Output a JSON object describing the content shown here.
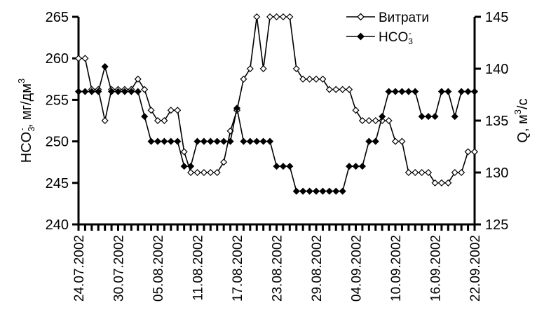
{
  "chart_data": {
    "type": "line",
    "x": [
      "24.07.2002",
      "25.07.2002",
      "26.07.2002",
      "27.07.2002",
      "28.07.2002",
      "29.07.2002",
      "30.07.2002",
      "31.07.2002",
      "01.08.2002",
      "02.08.2002",
      "03.08.2002",
      "04.08.2002",
      "05.08.2002",
      "06.08.2002",
      "07.08.2002",
      "08.08.2002",
      "09.08.2002",
      "10.08.2002",
      "11.08.2002",
      "12.08.2002",
      "13.08.2002",
      "14.08.2002",
      "15.08.2002",
      "16.08.2002",
      "17.08.2002",
      "18.08.2002",
      "19.08.2002",
      "20.08.2002",
      "21.08.2002",
      "22.08.2002",
      "23.08.2002",
      "24.08.2002",
      "25.08.2002",
      "26.08.2002",
      "27.08.2002",
      "28.08.2002",
      "29.08.2002",
      "30.08.2002",
      "31.08.2002",
      "01.09.2002",
      "02.09.2002",
      "03.09.2002",
      "04.09.2002",
      "05.09.2002",
      "06.09.2002",
      "07.09.2002",
      "08.09.2002",
      "09.09.2002",
      "10.09.2002",
      "11.09.2002",
      "12.09.2002",
      "13.09.2002",
      "14.09.2002",
      "15.09.2002",
      "16.09.2002",
      "17.09.2002",
      "18.09.2002",
      "19.09.2002",
      "20.09.2002",
      "21.09.2002",
      "22.09.2002"
    ],
    "x_tick_labels": [
      "24.07.2002",
      "30.07.2002",
      "05.08.2002",
      "11.08.2002",
      "17.08.2002",
      "23.08.2002",
      "29.08.2002",
      "04.09.2002",
      "10.09.2002",
      "16.09.2002",
      "22.09.2002"
    ],
    "series": [
      {
        "name": "Витрати",
        "axis": "right",
        "marker": "open-diamond",
        "values": [
          141,
          141,
          138,
          138,
          135,
          138,
          138,
          138,
          138,
          139,
          138,
          136,
          135,
          135,
          136,
          136,
          132,
          130,
          130,
          130,
          130,
          130,
          131,
          134,
          136,
          139,
          140,
          145,
          140,
          145,
          145,
          145,
          145,
          140,
          139,
          139,
          139,
          139,
          138,
          138,
          138,
          138,
          136,
          135,
          135,
          135,
          135,
          135,
          133,
          133,
          130,
          130,
          130,
          130,
          129,
          129,
          129,
          130,
          130,
          132,
          132
        ]
      },
      {
        "name": "HCO3-",
        "axis": "left",
        "marker": "filled-diamond",
        "values": [
          256,
          256,
          256,
          256,
          259,
          256,
          256,
          256,
          256,
          256,
          253,
          250,
          250,
          250,
          250,
          250,
          247,
          247,
          250,
          250,
          250,
          250,
          250,
          250,
          254,
          250,
          250,
          250,
          250,
          250,
          247,
          247,
          247,
          244,
          244,
          244,
          244,
          244,
          244,
          244,
          244,
          247,
          247,
          247,
          250,
          250,
          253,
          256,
          256,
          256,
          256,
          256,
          253,
          253,
          253,
          256,
          256,
          253,
          256,
          256,
          256
        ]
      }
    ],
    "y_left": {
      "label": "HCO3-, мг/дм3",
      "range": [
        240,
        265
      ],
      "ticks": [
        240,
        245,
        250,
        255,
        260,
        265
      ]
    },
    "y_right": {
      "label": "Q, м3/с",
      "range": [
        125,
        145
      ],
      "ticks": [
        125,
        130,
        135,
        140,
        145
      ]
    },
    "grid": false,
    "legend_position": "top-right"
  },
  "legend": {
    "items": [
      {
        "label": "Витрати"
      },
      {
        "label_main": "HCO",
        "label_sub": "3",
        "label_sup": "-"
      }
    ]
  },
  "axis_titles": {
    "left": {
      "main": "HCO",
      "sub": "3",
      "sup": "-",
      "rest": ", мг/дм",
      "sup2": "3"
    },
    "right": {
      "main": "Q, м",
      "sup": "3",
      "rest": "/с"
    }
  }
}
